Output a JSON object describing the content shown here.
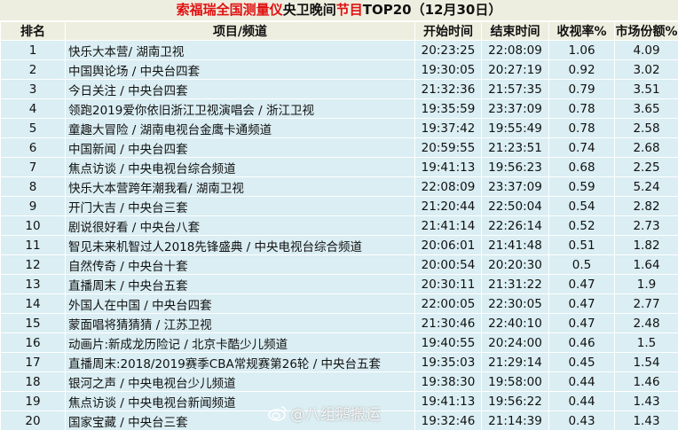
{
  "title": {
    "part1": "索福瑞全国测量仪",
    "part2": "央卫晚间",
    "part3": "节目",
    "part4": "TOP20（12月30日）",
    "accent": "#e01010"
  },
  "headers": [
    "排名",
    "项目/频道",
    "开始时间",
    "结束时间",
    "收视率%",
    "市场份额%"
  ],
  "rows": [
    [
      "1",
      "快乐大本营/ 湖南卫视",
      "20:23:25",
      "22:08:09",
      "1.06",
      "4.09"
    ],
    [
      "2",
      "中国舆论场 / 中央台四套",
      "19:30:05",
      "20:27:19",
      "0.92",
      "3.02"
    ],
    [
      "3",
      "今日关注 / 中央台四套",
      "21:32:36",
      "21:57:35",
      "0.79",
      "3.51"
    ],
    [
      "4",
      "领跑2019爱你依旧浙江卫视演唱会 / 浙江卫视",
      "19:35:59",
      "23:37:09",
      "0.78",
      "3.65"
    ],
    [
      "5",
      "童趣大冒险 / 湖南电视台金鹰卡通频道",
      "19:37:42",
      "19:55:49",
      "0.78",
      "2.58"
    ],
    [
      "6",
      "中国新闻 / 中央台四套",
      "20:59:55",
      "21:23:51",
      "0.74",
      "2.68"
    ],
    [
      "7",
      "焦点访谈 / 中央电视台综合频道",
      "19:41:13",
      "19:56:23",
      "0.68",
      "2.25"
    ],
    [
      "8",
      "快乐大本营跨年潮我看/ 湖南卫视",
      "22:08:09",
      "23:37:09",
      "0.59",
      "5.24"
    ],
    [
      "9",
      "开门大吉 / 中央台三套",
      "21:20:44",
      "22:50:04",
      "0.54",
      "2.82"
    ],
    [
      "10",
      "剧说很好看 / 中央台八套",
      "21:41:14",
      "22:26:14",
      "0.52",
      "2.73"
    ],
    [
      "11",
      "智见未来机智过人2018先锋盛典 / 中央电视台综合频道",
      "20:06:01",
      "21:41:48",
      "0.51",
      "1.82"
    ],
    [
      "12",
      "自然传奇 / 中央台十套",
      "20:00:54",
      "20:20:30",
      "0.5",
      "1.64"
    ],
    [
      "13",
      "直播周末 / 中央台五套",
      "20:30:11",
      "21:31:22",
      "0.47",
      "1.9"
    ],
    [
      "14",
      "外国人在中国 / 中央台四套",
      "22:00:05",
      "22:30:05",
      "0.47",
      "2.77"
    ],
    [
      "15",
      "蒙面唱将猜猜猜 / 江苏卫视",
      "21:30:46",
      "22:40:10",
      "0.47",
      "2.48"
    ],
    [
      "16",
      "动画片:新成龙历险记 / 北京卡酷少儿频道",
      "19:40:55",
      "20:24:00",
      "0.46",
      "1.5"
    ],
    [
      "17",
      "直播周末:2018/2019赛季CBA常规赛第26轮 / 中央台五套",
      "19:35:03",
      "21:29:14",
      "0.45",
      "1.54"
    ],
    [
      "18",
      "银河之声 / 中央电视台少儿频道",
      "19:38:30",
      "19:58:00",
      "0.44",
      "1.46"
    ],
    [
      "19",
      "焦点访谈 / 中央电视台新闻频道",
      "19:41:13",
      "19:56:22",
      "0.44",
      "1.43"
    ],
    [
      "20",
      "国家宝藏 / 中央台三套",
      "19:32:46",
      "21:14:39",
      "0.43",
      "1.43"
    ]
  ],
  "watermark": {
    "text": "@八组鹅搬运",
    "icon": "weibo-icon"
  }
}
